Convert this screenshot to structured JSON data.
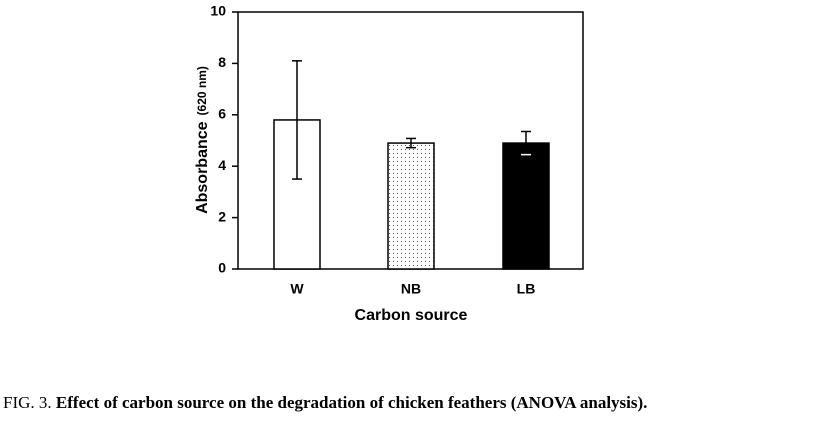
{
  "chart_data": {
    "type": "bar",
    "ylabel": "Absorbance",
    "ylabel_unit": "(620 nm)",
    "xlabel": "Carbon source",
    "categories": [
      "W",
      "NB",
      "LB"
    ],
    "values": [
      5.8,
      4.9,
      4.9
    ],
    "errors": [
      2.3,
      0.18,
      0.45
    ],
    "bar_styles": [
      "white",
      "dotted",
      "black"
    ],
    "ylim": [
      0,
      10
    ],
    "yticks": [
      0,
      2,
      4,
      6,
      8,
      10
    ]
  },
  "caption": {
    "label": "FIG. 3.",
    "text": "Effect of carbon source on the degradation of chicken feathers (ANOVA analysis)."
  }
}
